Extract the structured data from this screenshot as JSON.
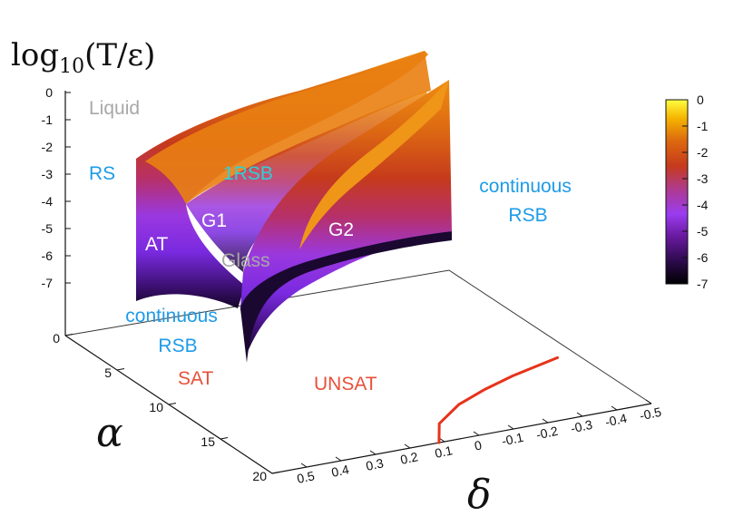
{
  "chart_data": {
    "type": "surface3d",
    "title": "log₁₀(T/ε)",
    "z_axis": {
      "label_base": "log",
      "label_sub": "10",
      "label_arg": "(T/ε)",
      "ticks": [
        "0",
        "-1",
        "-2",
        "-3",
        "-4",
        "-5",
        "-6",
        "-7"
      ],
      "range": [
        -7,
        0
      ]
    },
    "alpha_axis": {
      "label": "α",
      "ticks": [
        "0",
        "5",
        "10",
        "15",
        "20"
      ],
      "range": [
        0,
        20
      ]
    },
    "delta_axis": {
      "label": "δ",
      "ticks": [
        "0.5",
        "0.4",
        "0.3",
        "0.2",
        "0.1",
        "0",
        "-0.1",
        "-0.2",
        "-0.3",
        "-0.4",
        "-0.5"
      ],
      "range": [
        0.5,
        -0.5
      ]
    },
    "colorbar": {
      "ticks": [
        "0",
        "-1",
        "-2",
        "-3",
        "-4",
        "-5",
        "-6",
        "-7"
      ],
      "range": [
        -7,
        0
      ],
      "palette": [
        "#000000",
        "#2a0a4a",
        "#6a1aa0",
        "#9a3cf0",
        "#b03a8a",
        "#c63a1c",
        "#dd6a0e",
        "#f5b400",
        "#ffff40"
      ]
    },
    "regions": [
      {
        "text": "Liquid",
        "color": "#a8a8a8"
      },
      {
        "text": "RS",
        "color": "#1e9be8"
      },
      {
        "text": "1RSB",
        "color": "#2fd0d8"
      },
      {
        "text": "continuous RSB",
        "lines": [
          "continuous",
          "RSB"
        ],
        "color": "#1e9be8"
      },
      {
        "text": "AT",
        "color": "#ffffff"
      },
      {
        "text": "G1",
        "color": "#ffffff"
      },
      {
        "text": "G2",
        "color": "#ffffff"
      },
      {
        "text": "Glass",
        "color": "#a8a8a8"
      },
      {
        "text": "continuous RSB",
        "lines": [
          "continuous",
          "RSB"
        ],
        "color": "#1e9be8"
      },
      {
        "text": "SAT",
        "color": "#e8503a"
      },
      {
        "text": "UNSAT",
        "color": "#e8503a"
      }
    ],
    "sat_unsat_curve": {
      "name": "SAT-UNSAT transition",
      "color": "#e8321a",
      "points": [
        [
          0.06,
          20.0
        ],
        [
          0.0,
          17.8
        ],
        [
          -0.1,
          16.0
        ],
        [
          -0.2,
          14.8
        ],
        [
          -0.3,
          13.8
        ],
        [
          -0.45,
          12.6
        ]
      ]
    }
  }
}
